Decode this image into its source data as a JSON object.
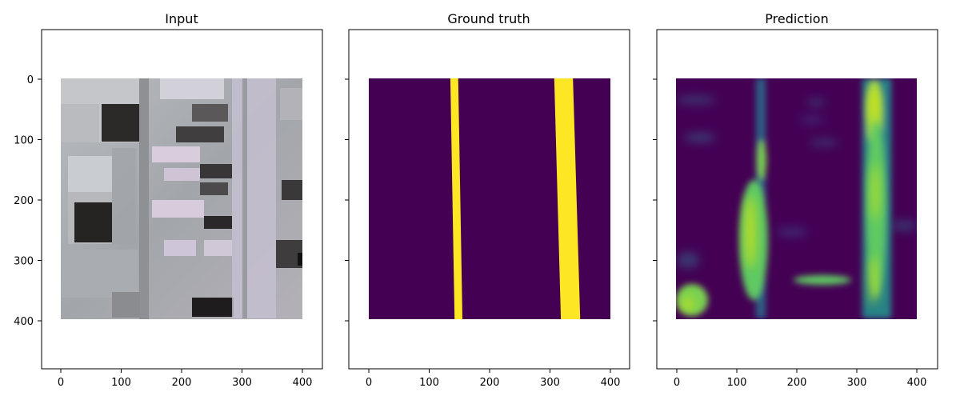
{
  "chart_data": [
    {
      "type": "image",
      "title": "Input",
      "x_ticks": [
        "0",
        "100",
        "200",
        "300",
        "400"
      ],
      "y_ticks": [
        "0",
        "100",
        "200",
        "300",
        "400"
      ],
      "xlim": [
        -35,
        435
      ],
      "ylim": [
        480,
        -80
      ],
      "image_extent": [
        0,
        400,
        0,
        400
      ],
      "content": "grayscale aerial photograph"
    },
    {
      "type": "heatmap",
      "title": "Ground truth",
      "x_ticks": [
        "0",
        "100",
        "200",
        "300",
        "400"
      ],
      "y_ticks": [],
      "xlim": [
        -35,
        435
      ],
      "ylim": [
        480,
        -80
      ],
      "image_extent": [
        0,
        400,
        0,
        400
      ],
      "colormap": {
        "low": "#440154",
        "high": "#fde725"
      },
      "bands": [
        {
          "top_x": [
            135,
            148
          ],
          "bottom_x": [
            142,
            155
          ]
        },
        {
          "top_x": [
            307,
            338
          ],
          "bottom_x": [
            318,
            350
          ]
        }
      ]
    },
    {
      "type": "heatmap",
      "title": "Prediction",
      "x_ticks": [
        "0",
        "100",
        "200",
        "300",
        "400"
      ],
      "y_ticks": [],
      "xlim": [
        -35,
        435
      ],
      "ylim": [
        480,
        -80
      ],
      "image_extent": [
        0,
        400,
        0,
        400
      ],
      "colormap": {
        "low": "#440154",
        "mid": "#21918c",
        "high": "#fde725"
      }
    }
  ]
}
